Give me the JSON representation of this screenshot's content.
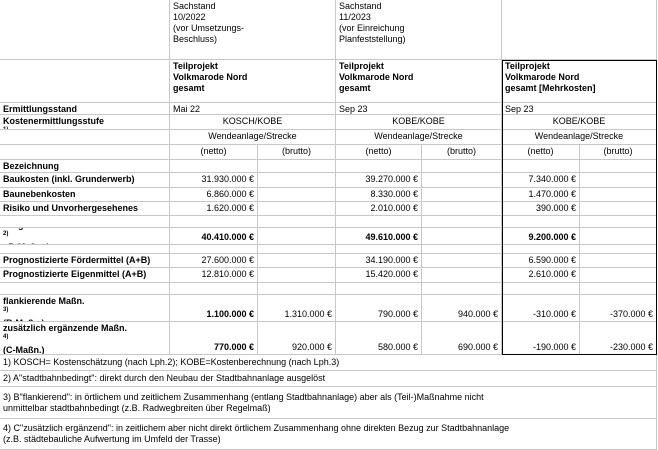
{
  "header": {
    "columns": [
      [
        "Sachstand",
        "10/2022",
        "(vor Umsetzungs-",
        "Beschluss)"
      ],
      [
        "Sachstand",
        "11/2023",
        "(vor Einreichung",
        "Planfeststellung)"
      ],
      null
    ]
  },
  "projects": [
    [
      "Teilprojekt",
      "Volkmarode Nord",
      "gesamt"
    ],
    [
      "Teilprojekt",
      "Volkmarode Nord",
      "gesamt"
    ],
    [
      "Teilprojekt",
      "Volkmarode Nord",
      "gesamt [Mehrkosten]"
    ]
  ],
  "ermittlungsstand": {
    "label": "Ermittlungsstand",
    "values": [
      "Mai 22",
      "Sep 23",
      "Sep 23"
    ]
  },
  "kostenstufe": {
    "label": "Kostenermittlungsstufe",
    "sup": "1)",
    "values": [
      "KOSCH/KOBE",
      "KOBE/KOBE",
      "KOBE/KOBE"
    ],
    "sub": [
      "Wendeanlage/Strecke",
      "Wendeanlage/Strecke",
      "Wendeanlage/Strecke"
    ]
  },
  "netto_brutto": [
    "(netto)",
    "(brutto)",
    "(netto)",
    "(brutto)",
    "(netto)",
    "(brutto)"
  ],
  "bezeichnung": "Bezeichnung",
  "rows": [
    {
      "label": "Baukosten (inkl. Grunderwerb)",
      "values": [
        "31.930.000 €",
        null,
        "39.270.000 €",
        null,
        "7.340.000 €",
        null
      ]
    },
    {
      "label": "Baunebenkosten",
      "values": [
        "6.860.000 €",
        null,
        "8.330.000 €",
        null,
        "1.470.000 €",
        null
      ]
    },
    {
      "label": "Risiko und Unvorhergesehenes",
      "values": [
        "1.620.000 €",
        null,
        "2.010.000 €",
        null,
        "390.000 €",
        null
      ]
    },
    {
      "label": "Prognose A",
      "sup": "2)",
      "label_rest": "+B-Maßnahmen",
      "values": [
        "40.410.000 €",
        null,
        "49.610.000 €",
        null,
        "9.200.000 €",
        null
      ]
    },
    {
      "label": "Prognostizierte Fördermittel (A+B)",
      "values": [
        "27.600.000 €",
        null,
        "34.190.000 €",
        null,
        "6.590.000 €",
        null
      ]
    },
    {
      "label": "Prognostizierte Eigenmittel (A+B)",
      "values": [
        "12.810.000 €",
        null,
        "15.420.000 €",
        null,
        "2.610.000 €",
        null
      ]
    },
    {
      "label": "flankierende Maßn. ",
      "sup": "3)",
      "sublabel": "(B-Maßn.)",
      "values": [
        "1.100.000 €",
        "1.310.000 €",
        "790.000 €",
        "940.000 €",
        "-310.000 €",
        "-370.000 €"
      ]
    },
    {
      "label": "zusätzlich ergänzende Maßn. ",
      "sup": "4)",
      "sublabel": "(C-Maßn.)",
      "values": [
        "770.000 €",
        "920.000 €",
        "580.000 €",
        "690.000 €",
        "-190.000 €",
        "-230.000 €"
      ]
    }
  ],
  "notes": [
    [
      "1) KOSCH= Kostenschätzung (nach Lph.2); KOBE=Kostenberechnung (nach Lph.3)"
    ],
    [
      "2) A\"stadtbahnbedingt\": direkt durch den Neubau der Stadtbahnanlage ausgelöst"
    ],
    [
      "3) B\"flankierend\": in örtlichem und zeitlichem Zusammenhang (entlang Stadtbahnanlage) aber als (Teil-)Maßnahme nicht",
      "unmittelbar stadtbahnbedingt (z.B. Radwegbreiten über Regelmaß)"
    ],
    [
      "4) C\"zusätzlich ergänzend\": in zeitlichem aber nicht direkt örtlichem Zusammenhang ohne direkten Bezug zur Stadtbahnanlage",
      "(z.B. städtebauliche Aufwertung im Umfeld der Trasse)"
    ]
  ]
}
